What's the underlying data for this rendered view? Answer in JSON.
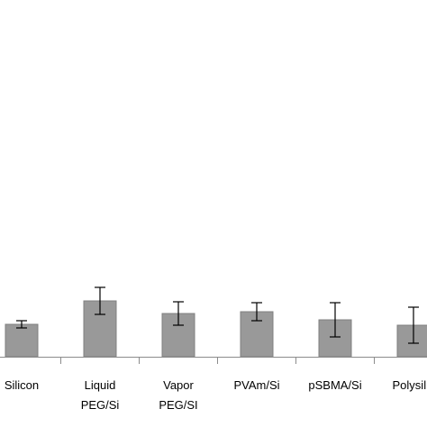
{
  "chart_data": {
    "type": "bar",
    "categories": [
      [
        "Silicon"
      ],
      [
        "Liquid",
        "PEG/Si"
      ],
      [
        "Vapor",
        "PEG/SI"
      ],
      [
        "PVAm/Si"
      ],
      [
        "pSBMA/Si"
      ],
      [
        "Polysilic"
      ]
    ],
    "series": [
      {
        "values": [
          36,
          62,
          48,
          50,
          41,
          35
        ],
        "errors": [
          4,
          15,
          13,
          10,
          19,
          20
        ]
      }
    ],
    "ylim": [
      0,
      400
    ],
    "grid": false,
    "legend": "none",
    "bar_color": "#999999",
    "bar_edge_color": "#808080",
    "axis_color": "#8c8c8c",
    "error_bar_color": "#000000",
    "title": "",
    "xlabel": "",
    "ylabel": ""
  }
}
